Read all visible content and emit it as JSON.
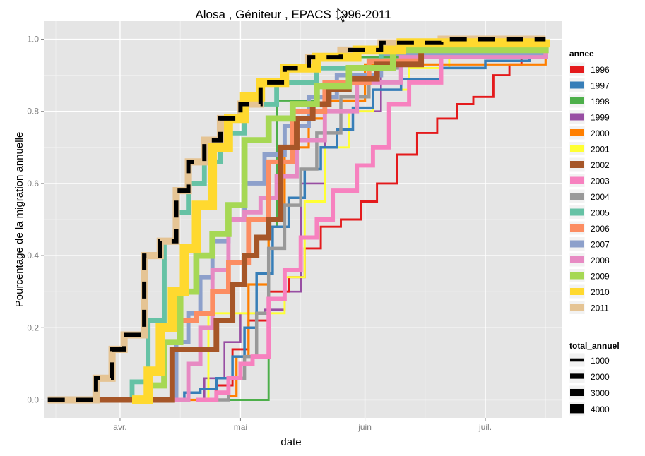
{
  "chart_data": {
    "type": "line",
    "title": "Alosa , Géniteur , EPACS 1996-2011",
    "xlabel": "date",
    "ylabel": "Pourcentage de la migration annuelle",
    "x_tick_labels": [
      "avr.",
      "mai",
      "juin",
      "juil."
    ],
    "y_ticks": [
      0.0,
      0.2,
      0.4,
      0.6,
      0.8,
      1.0
    ],
    "y_tick_labels": [
      "0.0",
      "0.2",
      "0.4",
      "0.6",
      "0.8",
      "1.0"
    ],
    "xlim": [
      "1996-03-13",
      "1996-07-20"
    ],
    "ylim": [
      -0.05,
      1.05
    ],
    "grid": true,
    "legend": {
      "position": "right",
      "color_title": "annee",
      "size_title": "total_annuel",
      "size_entries": [
        {
          "label": "1000",
          "value": 1000
        },
        {
          "label": "2000",
          "value": 2000
        },
        {
          "label": "3000",
          "value": 3000
        },
        {
          "label": "4000",
          "value": 4000
        }
      ]
    },
    "series": [
      {
        "name": "1996",
        "color": "#e41a1c",
        "total": 400,
        "x": [
          "1996-04-12",
          "1996-04-25",
          "1996-04-29",
          "1996-05-03",
          "1996-05-08",
          "1996-05-13",
          "1996-05-17",
          "1996-05-21",
          "1996-05-26",
          "1996-05-31",
          "1996-06-04",
          "1996-06-09",
          "1996-06-14",
          "1996-06-19",
          "1996-06-24",
          "1996-06-28",
          "1996-07-03",
          "1996-07-07",
          "1996-07-10",
          "1996-07-13"
        ],
        "y": [
          0.0,
          0.04,
          0.14,
          0.22,
          0.3,
          0.34,
          0.42,
          0.48,
          0.5,
          0.55,
          0.6,
          0.68,
          0.74,
          0.78,
          0.82,
          0.84,
          0.9,
          0.93,
          0.96,
          0.98
        ]
      },
      {
        "name": "1997",
        "color": "#377eb8",
        "total": 600,
        "x": [
          "1996-04-14",
          "1996-04-17",
          "1996-04-21",
          "1996-04-25",
          "1996-04-29",
          "1996-05-02",
          "1996-05-05",
          "1996-05-09",
          "1996-05-13",
          "1996-05-17",
          "1996-05-21",
          "1996-05-25",
          "1996-05-29",
          "1996-06-03",
          "1996-06-10",
          "1996-06-20",
          "1996-07-01",
          "1996-07-12",
          "1996-07-16"
        ],
        "y": [
          0.0,
          0.02,
          0.03,
          0.06,
          0.12,
          0.2,
          0.35,
          0.48,
          0.56,
          0.64,
          0.7,
          0.75,
          0.81,
          0.86,
          0.89,
          0.92,
          0.94,
          0.96,
          0.99
        ]
      },
      {
        "name": "1998",
        "color": "#4daf4a",
        "total": 400,
        "x": [
          "1996-03-14",
          "1996-05-07",
          "1996-05-08",
          "1996-05-10",
          "1996-05-20",
          "1996-06-20",
          "1996-07-16"
        ],
        "y": [
          0.0,
          0.0,
          0.48,
          0.83,
          0.95,
          0.99,
          1.0
        ]
      },
      {
        "name": "1999",
        "color": "#984ea3",
        "total": 300,
        "x": [
          "1996-04-12",
          "1996-04-22",
          "1996-04-27",
          "1996-05-01",
          "1996-05-07",
          "1996-05-12",
          "1996-05-16",
          "1996-05-22",
          "1996-06-05",
          "1996-07-16"
        ],
        "y": [
          0.0,
          0.06,
          0.16,
          0.24,
          0.25,
          0.3,
          0.6,
          0.8,
          0.96,
          1.0
        ]
      },
      {
        "name": "2000",
        "color": "#ff7f00",
        "total": 500,
        "x": [
          "1996-04-18",
          "1996-04-28",
          "1996-04-30",
          "1996-05-03",
          "1996-05-08",
          "1996-05-12",
          "1996-05-18",
          "1996-05-22",
          "1996-06-01",
          "1996-07-16"
        ],
        "y": [
          0.0,
          0.01,
          0.12,
          0.32,
          0.5,
          0.7,
          0.78,
          0.83,
          0.93,
          1.0
        ]
      },
      {
        "name": "2001",
        "color": "#ffff33",
        "total": 400,
        "x": [
          "1996-04-18",
          "1996-04-23",
          "1996-05-06",
          "1996-05-12",
          "1996-05-17",
          "1996-05-22",
          "1996-05-28",
          "1996-06-03",
          "1996-06-12",
          "1996-06-22",
          "1996-07-16"
        ],
        "y": [
          0.0,
          0.24,
          0.24,
          0.34,
          0.55,
          0.7,
          0.8,
          0.86,
          0.92,
          0.96,
          0.99
        ]
      },
      {
        "name": "2002",
        "color": "#a65628",
        "total": 2200,
        "x": [
          "1996-03-14",
          "1996-04-11",
          "1996-04-14",
          "1996-04-18",
          "1996-04-22",
          "1996-04-25",
          "1996-04-29",
          "1996-05-02",
          "1996-05-05",
          "1996-05-08",
          "1996-05-11",
          "1996-05-15",
          "1996-05-19",
          "1996-05-23",
          "1996-05-28",
          "1996-06-04",
          "1996-06-15",
          "1996-07-16"
        ],
        "y": [
          0.0,
          0.0,
          0.14,
          0.14,
          0.14,
          0.22,
          0.32,
          0.4,
          0.45,
          0.5,
          0.7,
          0.78,
          0.82,
          0.86,
          0.89,
          0.93,
          0.98,
          1.0
        ]
      },
      {
        "name": "2003",
        "color": "#f781bf",
        "total": 1500,
        "x": [
          "1996-04-20",
          "1996-04-25",
          "1996-04-28",
          "1996-05-01",
          "1996-05-04",
          "1996-05-08",
          "1996-05-12",
          "1996-05-16",
          "1996-05-20",
          "1996-05-24",
          "1996-05-30",
          "1996-06-03",
          "1996-06-07",
          "1996-06-12",
          "1996-06-20",
          "1996-07-16"
        ],
        "y": [
          0.0,
          0.02,
          0.06,
          0.1,
          0.12,
          0.28,
          0.36,
          0.45,
          0.5,
          0.58,
          0.65,
          0.7,
          0.82,
          0.88,
          0.95,
          0.99
        ]
      },
      {
        "name": "2004",
        "color": "#999999",
        "total": 1000,
        "x": [
          "1996-04-20",
          "1996-04-28",
          "1996-05-02",
          "1996-05-05",
          "1996-05-08",
          "1996-05-12",
          "1996-05-16",
          "1996-05-20",
          "1996-05-26",
          "1996-06-02",
          "1996-06-10",
          "1996-07-16"
        ],
        "y": [
          0.0,
          0.06,
          0.12,
          0.24,
          0.42,
          0.54,
          0.64,
          0.74,
          0.84,
          0.92,
          0.97,
          1.0
        ]
      },
      {
        "name": "2005",
        "color": "#66c2a5",
        "total": 1800,
        "x": [
          "1996-03-14",
          "1996-04-01",
          "1996-04-04",
          "1996-04-08",
          "1996-04-12",
          "1996-04-15",
          "1996-04-18",
          "1996-04-22",
          "1996-04-26",
          "1996-05-02",
          "1996-05-10",
          "1996-05-20",
          "1996-06-05",
          "1996-07-16"
        ],
        "y": [
          0.0,
          0.0,
          0.05,
          0.22,
          0.44,
          0.52,
          0.6,
          0.66,
          0.74,
          0.82,
          0.88,
          0.92,
          0.97,
          1.0
        ]
      },
      {
        "name": "2006",
        "color": "#fc8d62",
        "total": 1800,
        "x": [
          "1996-04-02",
          "1996-04-08",
          "1996-04-12",
          "1996-04-16",
          "1996-04-20",
          "1996-04-24",
          "1996-04-28",
          "1996-05-03",
          "1996-05-08",
          "1996-05-14",
          "1996-05-22",
          "1996-06-02",
          "1996-06-15",
          "1996-07-16"
        ],
        "y": [
          0.0,
          0.08,
          0.16,
          0.22,
          0.24,
          0.3,
          0.38,
          0.5,
          0.66,
          0.8,
          0.88,
          0.94,
          0.98,
          1.0
        ]
      },
      {
        "name": "2007",
        "color": "#8da0cb",
        "total": 1500,
        "x": [
          "1996-04-10",
          "1996-04-15",
          "1996-04-18",
          "1996-04-21",
          "1996-04-24",
          "1996-04-28",
          "1996-05-02",
          "1996-05-07",
          "1996-05-12",
          "1996-05-18",
          "1996-05-25",
          "1996-06-05",
          "1996-07-16"
        ],
        "y": [
          0.0,
          0.16,
          0.24,
          0.34,
          0.44,
          0.5,
          0.6,
          0.68,
          0.76,
          0.84,
          0.9,
          0.96,
          1.0
        ]
      },
      {
        "name": "2008",
        "color": "#e78ac3",
        "total": 1500,
        "x": [
          "1996-04-14",
          "1996-04-18",
          "1996-04-21",
          "1996-04-24",
          "1996-04-28",
          "1996-05-02",
          "1996-05-06",
          "1996-05-10",
          "1996-05-15",
          "1996-05-22",
          "1996-05-30",
          "1996-06-10",
          "1996-07-16"
        ],
        "y": [
          0.0,
          0.1,
          0.2,
          0.36,
          0.5,
          0.52,
          0.56,
          0.62,
          0.72,
          0.8,
          0.88,
          0.95,
          1.0
        ]
      },
      {
        "name": "2009",
        "color": "#a6d854",
        "total": 2500,
        "x": [
          "1996-04-05",
          "1996-04-08",
          "1996-04-12",
          "1996-04-16",
          "1996-04-20",
          "1996-04-24",
          "1996-04-28",
          "1996-05-02",
          "1996-05-08",
          "1996-05-14",
          "1996-05-20",
          "1996-05-28",
          "1996-06-08",
          "1996-07-16"
        ],
        "y": [
          0.0,
          0.04,
          0.16,
          0.3,
          0.4,
          0.46,
          0.54,
          0.72,
          0.78,
          0.82,
          0.87,
          0.92,
          0.97,
          1.0
        ]
      },
      {
        "name": "2010",
        "color": "#ffd92f",
        "total": 4000,
        "x": [
          "1996-04-04",
          "1996-04-08",
          "1996-04-11",
          "1996-04-14",
          "1996-04-17",
          "1996-04-20",
          "1996-04-24",
          "1996-04-28",
          "1996-05-02",
          "1996-05-06",
          "1996-05-12",
          "1996-05-20",
          "1996-05-30",
          "1996-06-10",
          "1996-07-16"
        ],
        "y": [
          0.0,
          0.08,
          0.2,
          0.3,
          0.42,
          0.54,
          0.7,
          0.78,
          0.84,
          0.88,
          0.92,
          0.95,
          0.97,
          0.99,
          1.0
        ]
      },
      {
        "name": "2011",
        "color": "#e5c494",
        "total": 3000,
        "x": [
          "1996-03-14",
          "1996-03-23",
          "1996-03-26",
          "1996-03-30",
          "1996-04-02",
          "1996-04-07",
          "1996-04-11",
          "1996-04-15",
          "1996-04-18",
          "1996-04-22",
          "1996-04-26",
          "1996-05-01",
          "1996-05-06",
          "1996-05-12",
          "1996-05-18",
          "1996-05-26",
          "1996-06-05",
          "1996-06-20",
          "1996-07-16"
        ],
        "y": [
          0.0,
          0.0,
          0.06,
          0.14,
          0.18,
          0.4,
          0.44,
          0.58,
          0.66,
          0.72,
          0.78,
          0.82,
          0.88,
          0.92,
          0.95,
          0.97,
          0.99,
          1.0,
          1.0
        ]
      }
    ]
  }
}
